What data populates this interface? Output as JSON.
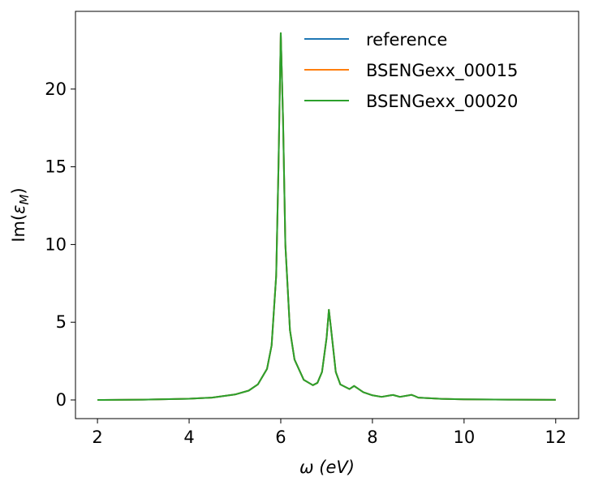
{
  "chart_data": {
    "type": "line",
    "xlabel": "ω (eV)",
    "ylabel": {
      "prefix": "Im(",
      "symbol": "ε",
      "subscript": "M",
      "suffix": ")"
    },
    "x": [
      2,
      3,
      4,
      4.5,
      5,
      5.3,
      5.5,
      5.7,
      5.8,
      5.9,
      5.95,
      6.0,
      6.05,
      6.1,
      6.2,
      6.3,
      6.5,
      6.7,
      6.8,
      6.9,
      7.0,
      7.05,
      7.1,
      7.2,
      7.3,
      7.5,
      7.6,
      7.7,
      7.8,
      8.0,
      8.2,
      8.4,
      8.45,
      8.5,
      8.6,
      8.8,
      8.85,
      8.9,
      9.0,
      9.5,
      10,
      11,
      12
    ],
    "series": [
      {
        "name": "reference",
        "color": "#1f77b4",
        "values": [
          0,
          0.02,
          0.08,
          0.15,
          0.35,
          0.6,
          1.0,
          2.0,
          3.5,
          8,
          15,
          23.6,
          18,
          10,
          4.5,
          2.6,
          1.3,
          0.95,
          1.1,
          1.8,
          4,
          5.8,
          4.5,
          1.8,
          1.0,
          0.7,
          0.9,
          0.7,
          0.5,
          0.3,
          0.2,
          0.3,
          0.32,
          0.28,
          0.2,
          0.3,
          0.33,
          0.28,
          0.15,
          0.07,
          0.04,
          0.02,
          0.01
        ]
      },
      {
        "name": "BSENGexx_00015",
        "color": "#ff7f0e",
        "values": [
          0,
          0.02,
          0.08,
          0.15,
          0.35,
          0.6,
          1.0,
          2.0,
          3.5,
          8,
          15,
          23.6,
          18,
          10,
          4.5,
          2.6,
          1.3,
          0.95,
          1.1,
          1.8,
          4,
          5.8,
          4.5,
          1.8,
          1.0,
          0.7,
          0.9,
          0.7,
          0.5,
          0.3,
          0.2,
          0.3,
          0.32,
          0.28,
          0.2,
          0.3,
          0.33,
          0.28,
          0.15,
          0.07,
          0.04,
          0.02,
          0.01
        ]
      },
      {
        "name": "BSENGexx_00020",
        "color": "#2ca02c",
        "values": [
          0,
          0.02,
          0.08,
          0.15,
          0.35,
          0.6,
          1.0,
          2.0,
          3.5,
          8,
          15,
          23.6,
          18,
          10,
          4.5,
          2.6,
          1.3,
          0.95,
          1.1,
          1.8,
          4,
          5.8,
          4.5,
          1.8,
          1.0,
          0.7,
          0.9,
          0.7,
          0.5,
          0.3,
          0.2,
          0.3,
          0.32,
          0.28,
          0.2,
          0.3,
          0.33,
          0.28,
          0.15,
          0.07,
          0.04,
          0.02,
          0.01
        ]
      }
    ],
    "xlim": [
      1.52,
      12.5
    ],
    "ylim": [
      -1.2,
      25
    ],
    "xticks": [
      2,
      4,
      6,
      8,
      10,
      12
    ],
    "yticks": [
      0,
      5,
      10,
      15,
      20
    ],
    "legend": "upper right",
    "grid": false
  }
}
